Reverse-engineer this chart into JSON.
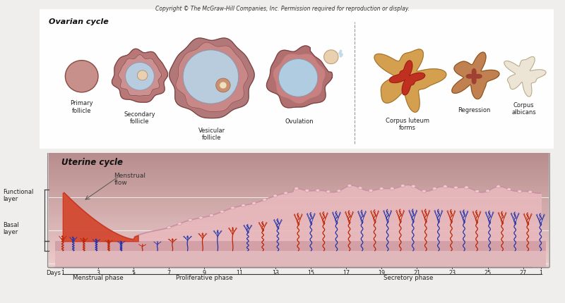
{
  "title": "Copyright © The McGraw-Hill Companies, Inc. Permission required for reproduction or display.",
  "ovarian_cycle_label": "Ovarian cycle",
  "uterine_cycle_label": "Uterine cycle",
  "follicle_labels": [
    "Primary\nfollicle",
    "Secondary\nfollicle",
    "Vesicular\nfollicle",
    "Ovulation",
    "Corpus luteum\nforms",
    "Regression",
    "Corpus\nalbicans"
  ],
  "days_label": "Days",
  "days": [
    1,
    3,
    5,
    7,
    9,
    11,
    13,
    15,
    17,
    19,
    21,
    23,
    25,
    27,
    1
  ],
  "phase_labels": [
    "Menstrual phase",
    "Proliferative phase",
    "Secretory phase"
  ],
  "menstrual_flow": "Menstrual\nflow",
  "vessel_red": "#bb2200",
  "vessel_blue": "#2233aa"
}
